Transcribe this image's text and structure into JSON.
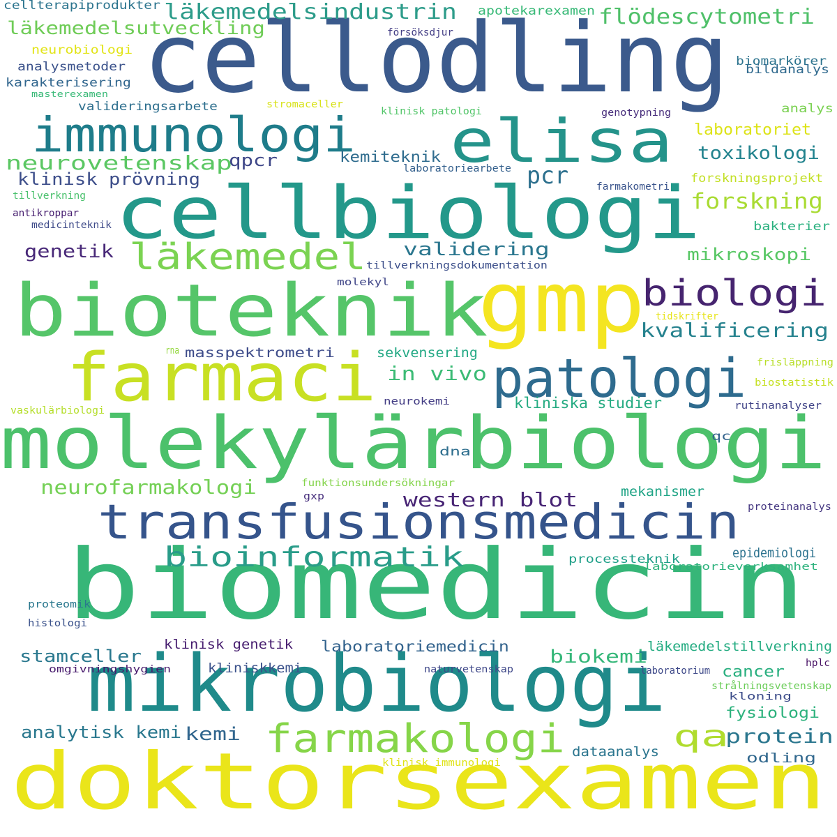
{
  "words": [
    {
      "text": "cellodling",
      "color": "#3b5a8c"
    },
    {
      "text": "elisa",
      "color": "#24938a"
    },
    {
      "text": "cellbiologi",
      "color": "#23988a"
    },
    {
      "text": "immunologi",
      "color": "#1e7c8a"
    },
    {
      "text": "gmp",
      "color": "#f4e521"
    },
    {
      "text": "bioteknik",
      "color": "#55c569"
    },
    {
      "text": "biologi",
      "color": "#46246f"
    },
    {
      "text": "farmaci",
      "color": "#c8e023"
    },
    {
      "text": "patologi",
      "color": "#2e6b8e"
    },
    {
      "text": "molekylärbiologi",
      "color": "#4cc16b"
    },
    {
      "text": "transfusionsmedicin",
      "color": "#35548b"
    },
    {
      "text": "biomedicin",
      "color": "#37b678"
    },
    {
      "text": "mikrobiologi",
      "color": "#1f8a8a"
    },
    {
      "text": "doktorsexamen",
      "color": "#eae51a"
    },
    {
      "text": "farmakologi",
      "color": "#86d549"
    },
    {
      "text": "qa",
      "color": "#b0dc2e"
    },
    {
      "text": "läkemedel",
      "color": "#7bd352"
    },
    {
      "text": "bioinformatik",
      "color": "#299c89"
    },
    {
      "text": "läkemedelsindustrin",
      "color": "#2d9c8a"
    },
    {
      "text": "läkemedelsutveckling",
      "color": "#6fcc57"
    },
    {
      "text": "flödescytometri",
      "color": "#4fc069"
    },
    {
      "text": "neurovetenskap",
      "color": "#5bc763"
    },
    {
      "text": "forskning",
      "color": "#a9db33"
    },
    {
      "text": "validering",
      "color": "#2a768e"
    },
    {
      "text": "kvalificering",
      "color": "#26828e"
    },
    {
      "text": "neurofarmakologi",
      "color": "#74d055"
    },
    {
      "text": "western blot",
      "color": "#482575"
    },
    {
      "text": "in vivo",
      "color": "#3bbb75"
    },
    {
      "text": "genetik",
      "color": "#482878"
    },
    {
      "text": "pcr",
      "color": "#2d708e"
    },
    {
      "text": "qpcr",
      "color": "#3f4788"
    },
    {
      "text": "toxikologi",
      "color": "#22838e"
    },
    {
      "text": "mikroskopi",
      "color": "#58c765"
    },
    {
      "text": "kemiteknik",
      "color": "#2f6c8e"
    },
    {
      "text": "klinisk prövning",
      "color": "#3d4e8a"
    },
    {
      "text": "laboratoriet",
      "color": "#dde318"
    },
    {
      "text": "cellterapiprodukter",
      "color": "#2b748e"
    },
    {
      "text": "apotekarexamen",
      "color": "#38b977"
    },
    {
      "text": "neurobiologi",
      "color": "#e2e418"
    },
    {
      "text": "analysmetoder",
      "color": "#3b528b"
    },
    {
      "text": "karakterisering",
      "color": "#31668e"
    },
    {
      "text": "masterexamen",
      "color": "#38b977"
    },
    {
      "text": "valideringsarbete",
      "color": "#2e6f8e"
    },
    {
      "text": "stromaceller",
      "color": "#d8e219"
    },
    {
      "text": "klinisk patologi",
      "color": "#52c569"
    },
    {
      "text": "försöksdjur",
      "color": "#433e85"
    },
    {
      "text": "biomarkörer",
      "color": "#2c738e"
    },
    {
      "text": "bildanalys",
      "color": "#306a8e"
    },
    {
      "text": "analys",
      "color": "#7ad151"
    },
    {
      "text": "genotypning",
      "color": "#472d7b"
    },
    {
      "text": "forskningsprojekt",
      "color": "#c2df23"
    },
    {
      "text": "farmakometri",
      "color": "#3a548c"
    },
    {
      "text": "laboratoriearbete",
      "color": "#34608d"
    },
    {
      "text": "tillverkning",
      "color": "#4ac16d"
    },
    {
      "text": "antikroppar",
      "color": "#482071"
    },
    {
      "text": "medicinteknik",
      "color": "#3e4a89"
    },
    {
      "text": "bakterier",
      "color": "#2ab07f"
    },
    {
      "text": "tillverkningsdokumentation",
      "color": "#3c4f8a"
    },
    {
      "text": "molekyl",
      "color": "#404688"
    },
    {
      "text": "tidskrifter",
      "color": "#e7e419"
    },
    {
      "text": "masspektrometri",
      "color": "#3e4c8a"
    },
    {
      "text": "sekvensering",
      "color": "#22a884"
    },
    {
      "text": "kliniska studier",
      "color": "#25ab82"
    },
    {
      "text": "rna",
      "color": "#95d840"
    },
    {
      "text": "frisläppning",
      "color": "#b8de29"
    },
    {
      "text": "biostatistik",
      "color": "#c5e021"
    },
    {
      "text": "vaskulärbiologi",
      "color": "#b5de2b"
    },
    {
      "text": "neurokemi",
      "color": "#433d84"
    },
    {
      "text": "rutinanalyser",
      "color": "#404387"
    },
    {
      "text": "qc",
      "color": "#33638d"
    },
    {
      "text": "dna",
      "color": "#2e6e8e"
    },
    {
      "text": "funktionsundersökningar",
      "color": "#84d44b"
    },
    {
      "text": "gxp",
      "color": "#472f7d"
    },
    {
      "text": "mekanismer",
      "color": "#20a486"
    },
    {
      "text": "proteinanalys",
      "color": "#453781"
    },
    {
      "text": "epidemiologi",
      "color": "#2c728e"
    },
    {
      "text": "processteknik",
      "color": "#1f9f88"
    },
    {
      "text": "laboratorieverksamhet",
      "color": "#2db27d"
    },
    {
      "text": "proteomik",
      "color": "#2a788e"
    },
    {
      "text": "histologi",
      "color": "#3b528b"
    },
    {
      "text": "klinisk genetik",
      "color": "#481f70"
    },
    {
      "text": "laboratoriemedicin",
      "color": "#33638d"
    },
    {
      "text": "läkemedelstillverkning",
      "color": "#25ac82"
    },
    {
      "text": "stamceller",
      "color": "#2a788e"
    },
    {
      "text": "biokemi",
      "color": "#35b779"
    },
    {
      "text": "omgivningshygien",
      "color": "#481b6d"
    },
    {
      "text": "kliniskkemi",
      "color": "#3b528b"
    },
    {
      "text": "naturvetenskap",
      "color": "#3f4889"
    },
    {
      "text": "laboratorium",
      "color": "#3e4989"
    },
    {
      "text": "hplc",
      "color": "#471164"
    },
    {
      "text": "cancer",
      "color": "#29af7f"
    },
    {
      "text": "strålningsvetenskap",
      "color": "#6ccd5a"
    },
    {
      "text": "kloning",
      "color": "#3d4d8a"
    },
    {
      "text": "analytisk kemi",
      "color": "#2a788e"
    },
    {
      "text": "kemi",
      "color": "#31668e"
    },
    {
      "text": "protein",
      "color": "#2a768e"
    },
    {
      "text": "fysiologi",
      "color": "#2db27d"
    },
    {
      "text": "dataanalys",
      "color": "#2b758e"
    },
    {
      "text": "odling",
      "color": "#31688e"
    },
    {
      "text": "klinisk immunologi",
      "color": "#dfe318"
    }
  ]
}
